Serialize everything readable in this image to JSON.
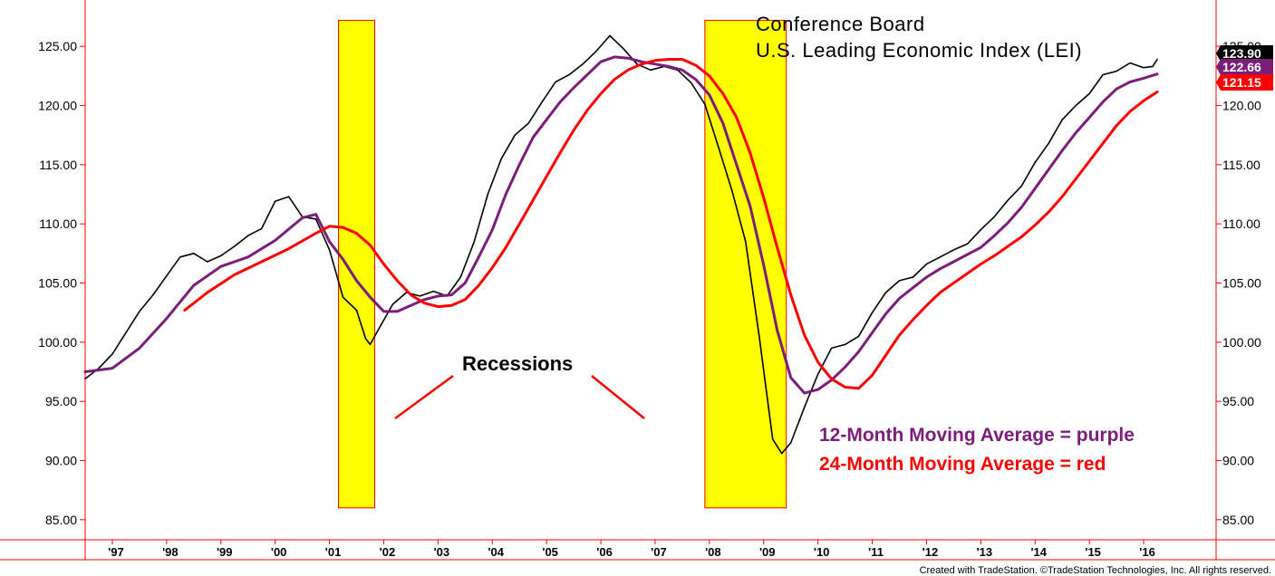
{
  "chart_data": {
    "type": "line",
    "title_lines": [
      "Conference Board",
      "U.S. Leading Economic Index (LEI)"
    ],
    "ylim": [
      82.5,
      127.5
    ],
    "yticks": [
      "85.00",
      "90.00",
      "95.00",
      "100.00",
      "105.00",
      "110.00",
      "115.00",
      "120.00",
      "125.00"
    ],
    "xticks": [
      "'97",
      "'98",
      "'99",
      "'00",
      "'01",
      "'02",
      "'03",
      "'04",
      "'05",
      "'06",
      "'07",
      "'08",
      "'09",
      "'10",
      "'11",
      "'12",
      "'13",
      "'14",
      "'15",
      "'16"
    ],
    "grid": false,
    "recessions": [
      {
        "start": "2001-03",
        "end": "2001-11"
      },
      {
        "start": "2007-12",
        "end": "2009-06"
      }
    ],
    "recession_box_range": [
      86.0,
      127.2
    ],
    "annotations": {
      "recessions_label": "Recessions",
      "legend_12": "12-Month Moving Average = purple",
      "legend_24": "24-Month Moving Average = red"
    },
    "last_values": {
      "lei": "123.90",
      "ma12": "122.66",
      "ma24": "121.15"
    },
    "series": [
      {
        "color": "#000000",
        "points": [
          [
            "1996-07",
            96.9
          ],
          [
            "1996-10",
            97.8
          ],
          [
            "1997-01",
            99.0
          ],
          [
            "1997-04",
            100.8
          ],
          [
            "1997-07",
            102.6
          ],
          [
            "1997-10",
            104.0
          ],
          [
            "1998-01",
            105.6
          ],
          [
            "1998-04",
            107.2
          ],
          [
            "1998-07",
            107.5
          ],
          [
            "1998-10",
            106.8
          ],
          [
            "1999-01",
            107.3
          ],
          [
            "1999-04",
            108.1
          ],
          [
            "1999-07",
            109.0
          ],
          [
            "1999-10",
            109.6
          ],
          [
            "2000-01",
            111.9
          ],
          [
            "2000-04",
            112.3
          ],
          [
            "2000-07",
            110.6
          ],
          [
            "2000-10",
            110.4
          ],
          [
            "2001-01",
            107.8
          ],
          [
            "2001-04",
            103.8
          ],
          [
            "2001-07",
            102.7
          ],
          [
            "2001-09",
            100.3
          ],
          [
            "2001-10",
            99.8
          ],
          [
            "2001-12",
            101.2
          ],
          [
            "2002-03",
            103.2
          ],
          [
            "2002-06",
            104.2
          ],
          [
            "2002-09",
            103.9
          ],
          [
            "2002-12",
            104.3
          ],
          [
            "2003-03",
            103.9
          ],
          [
            "2003-06",
            105.5
          ],
          [
            "2003-09",
            108.5
          ],
          [
            "2003-12",
            112.5
          ],
          [
            "2004-03",
            115.5
          ],
          [
            "2004-06",
            117.5
          ],
          [
            "2004-09",
            118.5
          ],
          [
            "2004-12",
            120.3
          ],
          [
            "2005-03",
            122.0
          ],
          [
            "2005-06",
            122.6
          ],
          [
            "2005-09",
            123.5
          ],
          [
            "2005-12",
            124.6
          ],
          [
            "2006-03",
            125.9
          ],
          [
            "2006-06",
            124.8
          ],
          [
            "2006-09",
            123.5
          ],
          [
            "2006-12",
            123.0
          ],
          [
            "2007-03",
            123.3
          ],
          [
            "2007-06",
            123.0
          ],
          [
            "2007-09",
            121.9
          ],
          [
            "2007-12",
            120.1
          ],
          [
            "2008-03",
            116.5
          ],
          [
            "2008-06",
            112.8
          ],
          [
            "2008-09",
            108.5
          ],
          [
            "2008-12",
            100.5
          ],
          [
            "2009-03",
            91.8
          ],
          [
            "2009-05",
            90.6
          ],
          [
            "2009-07",
            91.5
          ],
          [
            "2009-10",
            94.5
          ],
          [
            "2010-01",
            97.3
          ],
          [
            "2010-04",
            99.5
          ],
          [
            "2010-07",
            99.8
          ],
          [
            "2010-10",
            100.5
          ],
          [
            "2011-01",
            102.5
          ],
          [
            "2011-04",
            104.2
          ],
          [
            "2011-07",
            105.2
          ],
          [
            "2011-10",
            105.5
          ],
          [
            "2012-01",
            106.6
          ],
          [
            "2012-04",
            107.2
          ],
          [
            "2012-07",
            107.8
          ],
          [
            "2012-10",
            108.3
          ],
          [
            "2013-01",
            109.5
          ],
          [
            "2013-04",
            110.6
          ],
          [
            "2013-07",
            112.0
          ],
          [
            "2013-10",
            113.2
          ],
          [
            "2014-01",
            115.2
          ],
          [
            "2014-04",
            116.8
          ],
          [
            "2014-07",
            118.8
          ],
          [
            "2014-10",
            120.0
          ],
          [
            "2015-01",
            121.0
          ],
          [
            "2015-04",
            122.6
          ],
          [
            "2015-07",
            122.9
          ],
          [
            "2015-10",
            123.6
          ],
          [
            "2016-01",
            123.2
          ],
          [
            "2016-03",
            123.3
          ],
          [
            "2016-04",
            123.9
          ]
        ]
      },
      {
        "color": "#7b1e7a",
        "points": [
          [
            "1996-07",
            97.5
          ],
          [
            "1997-01",
            97.8
          ],
          [
            "1997-07",
            99.5
          ],
          [
            "1998-01",
            102.0
          ],
          [
            "1998-07",
            104.8
          ],
          [
            "1999-01",
            106.4
          ],
          [
            "1999-07",
            107.2
          ],
          [
            "2000-01",
            108.6
          ],
          [
            "2000-07",
            110.5
          ],
          [
            "2000-10",
            110.8
          ],
          [
            "2001-01",
            108.5
          ],
          [
            "2001-04",
            107.0
          ],
          [
            "2001-07",
            105.2
          ],
          [
            "2001-10",
            103.8
          ],
          [
            "2002-01",
            102.6
          ],
          [
            "2002-04",
            102.6
          ],
          [
            "2002-07",
            103.1
          ],
          [
            "2002-10",
            103.6
          ],
          [
            "2003-01",
            103.9
          ],
          [
            "2003-04",
            104.0
          ],
          [
            "2003-07",
            105.0
          ],
          [
            "2003-10",
            107.2
          ],
          [
            "2004-01",
            109.5
          ],
          [
            "2004-04",
            112.5
          ],
          [
            "2004-07",
            115.0
          ],
          [
            "2004-10",
            117.3
          ],
          [
            "2005-01",
            118.8
          ],
          [
            "2005-04",
            120.3
          ],
          [
            "2005-07",
            121.5
          ],
          [
            "2005-10",
            122.6
          ],
          [
            "2006-01",
            123.7
          ],
          [
            "2006-04",
            124.1
          ],
          [
            "2006-07",
            124.0
          ],
          [
            "2006-10",
            123.7
          ],
          [
            "2007-01",
            123.5
          ],
          [
            "2007-04",
            123.3
          ],
          [
            "2007-07",
            123.0
          ],
          [
            "2007-10",
            122.2
          ],
          [
            "2008-01",
            120.9
          ],
          [
            "2008-04",
            118.5
          ],
          [
            "2008-07",
            115.0
          ],
          [
            "2008-10",
            111.5
          ],
          [
            "2009-01",
            106.5
          ],
          [
            "2009-04",
            101.0
          ],
          [
            "2009-07",
            97.0
          ],
          [
            "2009-10",
            95.7
          ],
          [
            "2010-01",
            96.0
          ],
          [
            "2010-04",
            96.8
          ],
          [
            "2010-07",
            97.9
          ],
          [
            "2010-10",
            99.2
          ],
          [
            "2011-01",
            100.8
          ],
          [
            "2011-04",
            102.4
          ],
          [
            "2011-07",
            103.7
          ],
          [
            "2011-10",
            104.6
          ],
          [
            "2012-01",
            105.5
          ],
          [
            "2012-04",
            106.2
          ],
          [
            "2012-07",
            106.8
          ],
          [
            "2012-10",
            107.4
          ],
          [
            "2013-01",
            108.0
          ],
          [
            "2013-04",
            109.0
          ],
          [
            "2013-07",
            110.1
          ],
          [
            "2013-10",
            111.4
          ],
          [
            "2014-01",
            113.0
          ],
          [
            "2014-04",
            114.6
          ],
          [
            "2014-07",
            116.2
          ],
          [
            "2014-10",
            117.7
          ],
          [
            "2015-01",
            119.0
          ],
          [
            "2015-04",
            120.3
          ],
          [
            "2015-07",
            121.4
          ],
          [
            "2015-10",
            122.0
          ],
          [
            "2016-01",
            122.3
          ],
          [
            "2016-04",
            122.66
          ]
        ]
      },
      {
        "color": "#ff0000",
        "points": [
          [
            "1998-05",
            102.7
          ],
          [
            "1998-10",
            104.2
          ],
          [
            "1999-04",
            105.7
          ],
          [
            "1999-10",
            106.8
          ],
          [
            "2000-04",
            107.9
          ],
          [
            "2000-10",
            109.2
          ],
          [
            "2001-01",
            109.8
          ],
          [
            "2001-04",
            109.7
          ],
          [
            "2001-07",
            109.2
          ],
          [
            "2001-10",
            108.2
          ],
          [
            "2002-01",
            106.6
          ],
          [
            "2002-04",
            105.2
          ],
          [
            "2002-07",
            104.0
          ],
          [
            "2002-10",
            103.3
          ],
          [
            "2003-01",
            103.0
          ],
          [
            "2003-04",
            103.1
          ],
          [
            "2003-07",
            103.6
          ],
          [
            "2003-10",
            104.8
          ],
          [
            "2004-01",
            106.3
          ],
          [
            "2004-04",
            108.0
          ],
          [
            "2004-07",
            110.0
          ],
          [
            "2004-10",
            112.0
          ],
          [
            "2005-01",
            114.0
          ],
          [
            "2005-04",
            116.0
          ],
          [
            "2005-07",
            117.9
          ],
          [
            "2005-10",
            119.6
          ],
          [
            "2006-01",
            121.0
          ],
          [
            "2006-04",
            122.2
          ],
          [
            "2006-07",
            123.0
          ],
          [
            "2006-10",
            123.5
          ],
          [
            "2007-01",
            123.8
          ],
          [
            "2007-04",
            123.9
          ],
          [
            "2007-07",
            123.9
          ],
          [
            "2007-10",
            123.4
          ],
          [
            "2008-01",
            122.5
          ],
          [
            "2008-04",
            121.0
          ],
          [
            "2008-07",
            119.0
          ],
          [
            "2008-10",
            116.0
          ],
          [
            "2009-01",
            112.2
          ],
          [
            "2009-04",
            108.0
          ],
          [
            "2009-07",
            104.0
          ],
          [
            "2009-10",
            100.6
          ],
          [
            "2010-01",
            98.3
          ],
          [
            "2010-04",
            96.9
          ],
          [
            "2010-07",
            96.2
          ],
          [
            "2010-10",
            96.1
          ],
          [
            "2011-01",
            97.2
          ],
          [
            "2011-04",
            98.9
          ],
          [
            "2011-07",
            100.6
          ],
          [
            "2011-10",
            101.9
          ],
          [
            "2012-01",
            103.1
          ],
          [
            "2012-04",
            104.2
          ],
          [
            "2012-07",
            105.0
          ],
          [
            "2012-10",
            105.8
          ],
          [
            "2013-01",
            106.6
          ],
          [
            "2013-04",
            107.3
          ],
          [
            "2013-07",
            108.1
          ],
          [
            "2013-10",
            108.9
          ],
          [
            "2014-01",
            109.9
          ],
          [
            "2014-04",
            111.0
          ],
          [
            "2014-07",
            112.3
          ],
          [
            "2014-10",
            113.8
          ],
          [
            "2015-01",
            115.3
          ],
          [
            "2015-04",
            116.8
          ],
          [
            "2015-07",
            118.3
          ],
          [
            "2015-10",
            119.5
          ],
          [
            "2016-01",
            120.4
          ],
          [
            "2016-04",
            121.15
          ]
        ]
      }
    ]
  },
  "colors": {
    "frame": "#ff0000",
    "recession_fill": "#ffff00",
    "lei": "#000000",
    "ma12": "#7b1e7a",
    "ma24": "#ff0000"
  },
  "footer": "Created with TradeStation. ©TradeStation Technologies, Inc. All rights reserved."
}
